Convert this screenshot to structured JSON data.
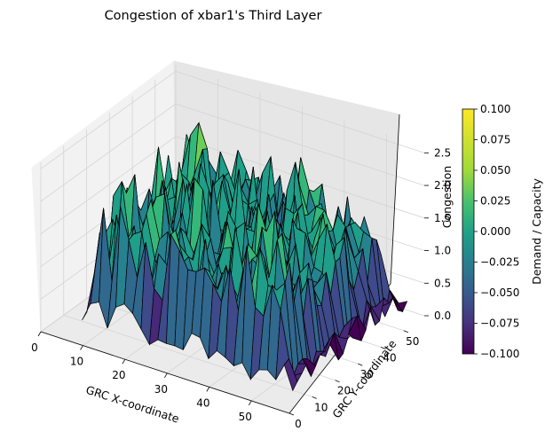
{
  "chart_data": {
    "type": "surface3d",
    "title": "Congestion of xbar1's Third Layer",
    "xlabel": "GRC X-coordinate",
    "ylabel": "GRC Y-coordinate",
    "zlabel": "Congestion",
    "xlim": [
      0,
      59
    ],
    "ylim": [
      0,
      59
    ],
    "zlim": [
      0,
      2.6
    ],
    "x_ticks": [
      "0",
      "10",
      "20",
      "30",
      "40",
      "50"
    ],
    "y_ticks": [
      "0",
      "10",
      "20",
      "30",
      "40",
      "50"
    ],
    "z_ticks": [
      "0.0",
      "0.5",
      "1.0",
      "1.5",
      "2.0",
      "2.5"
    ],
    "grid": true,
    "colormap": "viridis",
    "colorbar": {
      "label": "Demand / Capacity",
      "range": [
        -0.1,
        0.1
      ],
      "ticks": [
        "0.100",
        "0.075",
        "0.050",
        "0.025",
        "0.000",
        "−0.025",
        "−0.050",
        "−0.075",
        "−0.100"
      ]
    },
    "surface_profile": {
      "grid_size": 60,
      "occupied_x_range": [
        5,
        56
      ],
      "occupied_y_range": [
        6,
        57
      ],
      "peak_value": 2.6,
      "peak_location": [
        6,
        36
      ],
      "typical_core_range": [
        1.0,
        2.4
      ],
      "edge_range": [
        0.1,
        0.6
      ]
    }
  }
}
